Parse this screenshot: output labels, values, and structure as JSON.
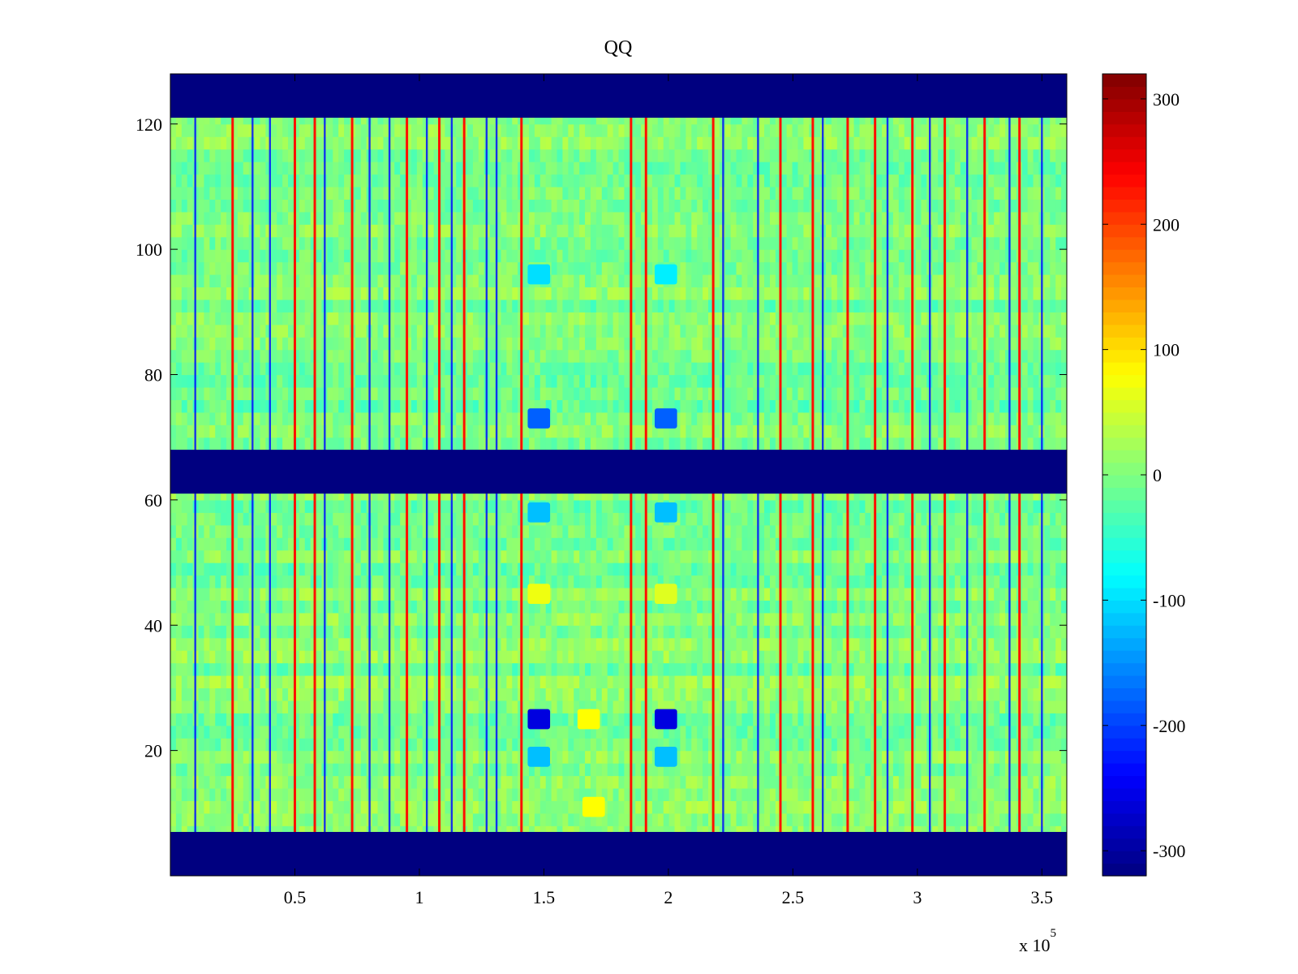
{
  "chart_data": {
    "type": "heatmap",
    "title": "QQ",
    "xlabel": "",
    "ylabel": "",
    "x_range": [
      0,
      360000
    ],
    "y_range": [
      0,
      128
    ],
    "x_ticks": [
      50000,
      100000,
      150000,
      200000,
      250000,
      300000,
      350000
    ],
    "x_tick_labels": [
      "0.5",
      "1",
      "1.5",
      "2",
      "2.5",
      "3",
      "3.5"
    ],
    "x_exponent_label": "x 10",
    "x_exponent_power": "5",
    "y_ticks": [
      20,
      40,
      60,
      80,
      100,
      120
    ],
    "y_tick_labels": [
      "20",
      "40",
      "60",
      "80",
      "100",
      "120"
    ],
    "colormap": "jet",
    "clim": [
      -320,
      320
    ],
    "colorbar_ticks": [
      -300,
      -200,
      -100,
      0,
      100,
      200,
      300
    ],
    "colorbar_tick_labels": [
      "-300",
      "-200",
      "-100",
      "0",
      "100",
      "200",
      "300"
    ],
    "background_value": 0,
    "masked_row_bands": [
      {
        "rows": [
          0,
          7
        ],
        "value": -320
      },
      {
        "rows": [
          61,
          68
        ],
        "value": -320
      },
      {
        "rows": [
          121,
          128
        ],
        "value": -320
      }
    ],
    "positive_stripes_x": [
      25000,
      50000,
      58000,
      73000,
      95000,
      108000,
      118000,
      141000,
      185000,
      191000,
      218000,
      245000,
      258000,
      272000,
      283000,
      298000,
      311000,
      327000,
      341000
    ],
    "negative_stripes_x": [
      10000,
      33000,
      40000,
      62000,
      80000,
      88000,
      103000,
      113000,
      127000,
      131000,
      222000,
      236000,
      262000,
      288000,
      305000,
      320000,
      337000,
      350000
    ],
    "blobs": [
      {
        "x": 148000,
        "y": 73,
        "value": -180
      },
      {
        "x": 199000,
        "y": 73,
        "value": -180
      },
      {
        "x": 148000,
        "y": 25,
        "value": -260
      },
      {
        "x": 199000,
        "y": 25,
        "value": -260
      },
      {
        "x": 168000,
        "y": 25,
        "value": 80
      },
      {
        "x": 148000,
        "y": 19,
        "value": -120
      },
      {
        "x": 199000,
        "y": 19,
        "value": -120
      },
      {
        "x": 148000,
        "y": 58,
        "value": -120
      },
      {
        "x": 199000,
        "y": 58,
        "value": -120
      },
      {
        "x": 148000,
        "y": 96,
        "value": -100
      },
      {
        "x": 199000,
        "y": 96,
        "value": -90
      },
      {
        "x": 148000,
        "y": 45,
        "value": 70
      },
      {
        "x": 199000,
        "y": 45,
        "value": 60
      },
      {
        "x": 170000,
        "y": 11,
        "value": 80
      }
    ]
  }
}
